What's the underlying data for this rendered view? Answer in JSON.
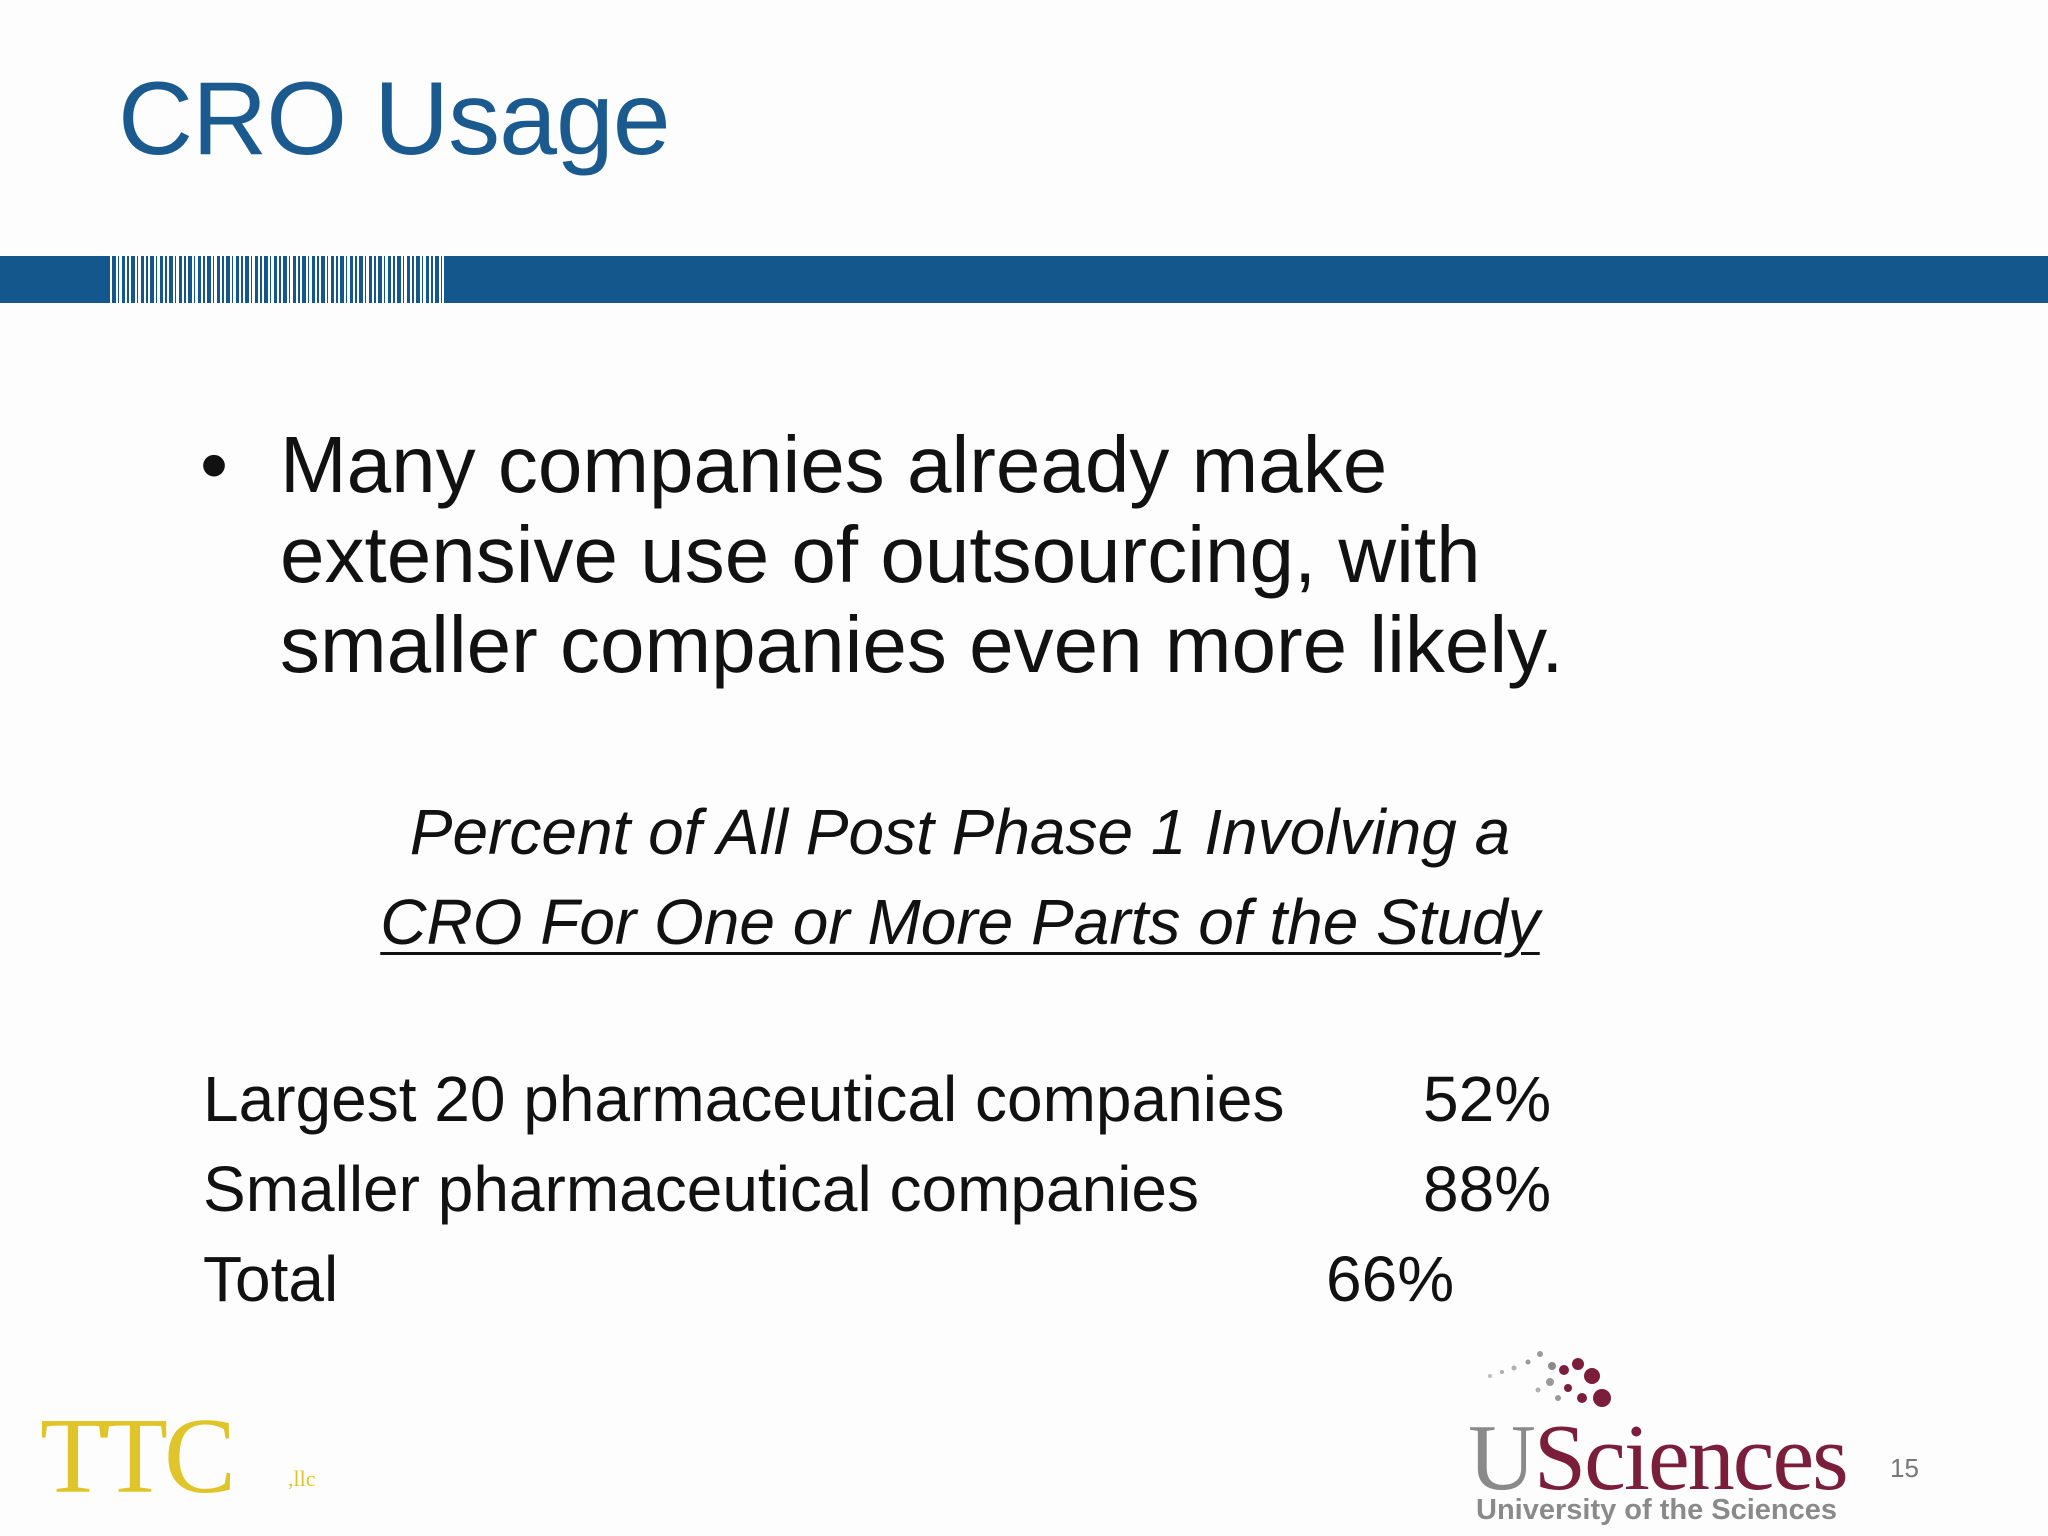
{
  "title": "CRO Usage",
  "bullet": {
    "text": "Many companies already make extensive use of outsourcing, with smaller companies even more likely."
  },
  "caption": {
    "line1": "Percent of All Post Phase 1 Involving a",
    "line2": "CRO For One or More Parts of the Study"
  },
  "rows": [
    {
      "label": "Largest 20 pharmaceutical companies",
      "value": "52%"
    },
    {
      "label": "Smaller pharmaceutical companies",
      "value": "88%"
    },
    {
      "label": "Total",
      "value": "66%"
    }
  ],
  "logos": {
    "ttc": "TTC",
    "ttc_suffix": ",llc",
    "usciences_u": "U",
    "usciences_rest": "Sciences",
    "usciences_sub": "University of the Sciences"
  },
  "page_number": "15",
  "colors": {
    "title": "#1b5a8e",
    "band": "#14578c",
    "ttc_gold": "#e0c52a",
    "usciences_maroon": "#7b1e3c",
    "usciences_gray": "#8a8a8a"
  }
}
